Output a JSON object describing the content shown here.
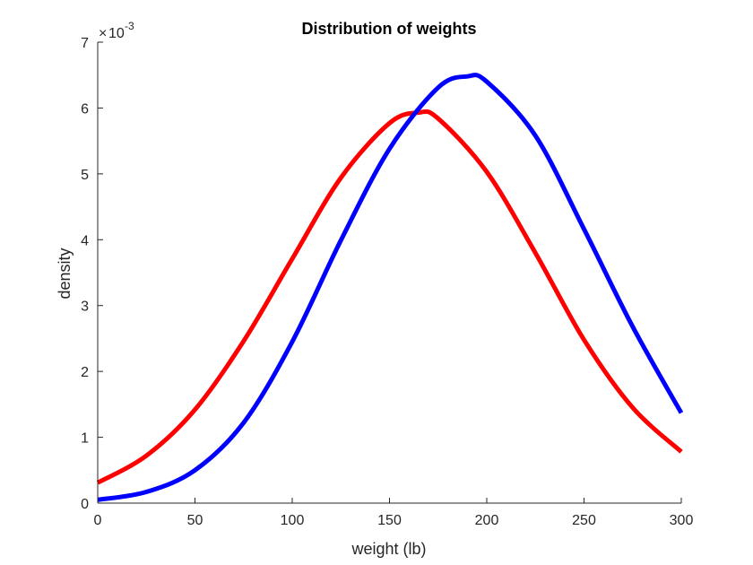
{
  "chart_data": {
    "type": "line",
    "title": "Distribution of weights",
    "xlabel": "weight (lb)",
    "ylabel": "density",
    "y_multiplier": "10",
    "y_exponent": "-3",
    "xlim": [
      0,
      300
    ],
    "ylim": [
      0,
      7
    ],
    "x_ticks": [
      "0",
      "50",
      "100",
      "150",
      "200",
      "250",
      "300"
    ],
    "y_ticks": [
      "0",
      "1",
      "2",
      "3",
      "4",
      "5",
      "6",
      "7"
    ],
    "grid": false,
    "series": [
      {
        "color": "#ff0000",
        "x": [
          0,
          25,
          50,
          75,
          100,
          125,
          150,
          165,
          175,
          200,
          225,
          250,
          275,
          300
        ],
        "y": [
          0.31,
          0.72,
          1.42,
          2.46,
          3.71,
          4.94,
          5.77,
          5.93,
          5.84,
          5.03,
          3.8,
          2.48,
          1.45,
          0.78
        ]
      },
      {
        "color": "#0000ff",
        "x": [
          0,
          25,
          50,
          75,
          100,
          125,
          150,
          175,
          190,
          200,
          225,
          250,
          275,
          300
        ],
        "y": [
          0.05,
          0.17,
          0.5,
          1.22,
          2.45,
          3.99,
          5.38,
          6.31,
          6.48,
          6.4,
          5.58,
          4.16,
          2.68,
          1.37
        ]
      }
    ]
  }
}
